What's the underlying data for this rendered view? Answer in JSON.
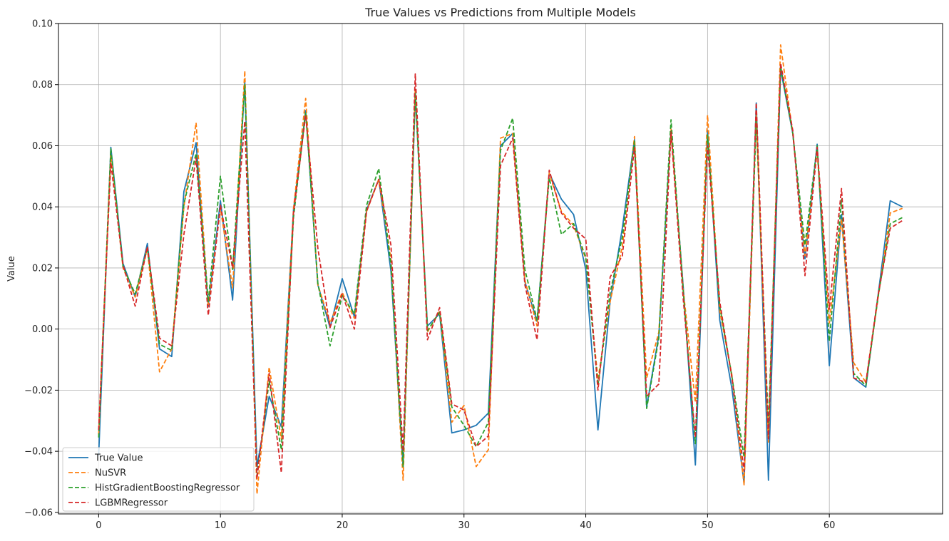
{
  "chart_data": {
    "type": "line",
    "title": "True Values vs Predictions from Multiple Models",
    "xlabel": "",
    "ylabel": "Value",
    "xlim": [
      -3.3,
      69.3
    ],
    "ylim": [
      -0.0605,
      0.1
    ],
    "x_ticks": [
      0,
      10,
      20,
      30,
      40,
      50,
      60
    ],
    "x_tick_labels": [
      "0",
      "10",
      "20",
      "30",
      "40",
      "50",
      "60"
    ],
    "y_ticks": [
      -0.06,
      -0.04,
      -0.02,
      0.0,
      0.02,
      0.04,
      0.06,
      0.08,
      0.1
    ],
    "y_tick_labels": [
      "−0.06",
      "−0.04",
      "−0.02",
      "0.00",
      "0.02",
      "0.04",
      "0.06",
      "0.08",
      "0.10"
    ],
    "grid": true,
    "legend_position": "lower-left",
    "series": [
      {
        "name": "True Value",
        "color": "#1f77b4",
        "dash": "solid",
        "values": [
          -0.0415,
          0.0595,
          0.0215,
          0.0105,
          0.028,
          -0.0065,
          -0.009,
          0.045,
          0.061,
          0.0075,
          0.042,
          0.0095,
          0.081,
          -0.045,
          -0.022,
          -0.032,
          0.039,
          0.0715,
          0.0145,
          0.0005,
          0.0165,
          0.004,
          0.039,
          0.049,
          0.019,
          -0.045,
          0.0765,
          0.001,
          0.005,
          -0.034,
          -0.033,
          -0.0315,
          -0.0275,
          0.06,
          0.064,
          0.0155,
          0.0025,
          0.051,
          0.0425,
          0.0375,
          0.0195,
          -0.033,
          0.009,
          0.033,
          0.062,
          -0.0255,
          -0.002,
          0.065,
          0.014,
          -0.0445,
          0.065,
          0.003,
          -0.0195,
          -0.0505,
          0.074,
          -0.0495,
          0.085,
          0.064,
          0.023,
          0.0605,
          -0.012,
          0.0375,
          -0.016,
          -0.019,
          0.011,
          0.042,
          0.04
        ]
      },
      {
        "name": "NuSVR",
        "color": "#ff7f0e",
        "dash": "dashed",
        "values": [
          -0.0345,
          0.057,
          0.02,
          0.0105,
          0.0265,
          -0.014,
          -0.0065,
          0.04,
          0.0675,
          0.008,
          0.0395,
          0.0135,
          0.0845,
          -0.054,
          -0.0125,
          -0.036,
          0.0395,
          0.0755,
          0.0145,
          0.002,
          0.012,
          0.0035,
          0.0385,
          0.049,
          0.023,
          -0.0495,
          0.079,
          -0.001,
          0.006,
          -0.0305,
          -0.025,
          -0.045,
          -0.0395,
          0.0625,
          0.064,
          0.016,
          0.001,
          0.051,
          0.0385,
          0.034,
          0.023,
          -0.0165,
          0.009,
          0.027,
          0.063,
          -0.016,
          -0.001,
          0.0655,
          0.013,
          -0.024,
          0.07,
          0.006,
          -0.015,
          -0.051,
          0.07,
          -0.037,
          0.093,
          0.064,
          0.024,
          0.058,
          0.002,
          0.036,
          -0.011,
          -0.0175,
          0.01,
          0.038,
          0.0395
        ]
      },
      {
        "name": "HistGradientBoostingRegressor",
        "color": "#2ca02c",
        "dash": "dashed",
        "values": [
          -0.0355,
          0.059,
          0.0205,
          0.0115,
          0.0265,
          -0.005,
          -0.007,
          0.041,
          0.0575,
          0.009,
          0.05,
          0.0195,
          0.08,
          -0.048,
          -0.017,
          -0.0395,
          0.0365,
          0.071,
          0.015,
          -0.0055,
          0.011,
          0.005,
          0.0405,
          0.0525,
          0.021,
          -0.045,
          0.0775,
          -0.0005,
          0.0055,
          -0.0255,
          -0.0315,
          -0.0385,
          -0.0305,
          0.0585,
          0.069,
          0.0195,
          0.003,
          0.0495,
          0.031,
          0.0345,
          0.0235,
          -0.0185,
          0.012,
          0.03,
          0.0615,
          -0.026,
          -0.003,
          0.0685,
          0.0125,
          -0.0375,
          0.0635,
          0.0075,
          -0.0155,
          -0.042,
          0.0685,
          -0.032,
          0.086,
          0.064,
          0.0275,
          0.06,
          -0.004,
          0.0425,
          -0.0145,
          -0.0185,
          0.0105,
          0.0345,
          0.0365
        ]
      },
      {
        "name": "LGBMRegressor",
        "color": "#d62728",
        "dash": "dashed",
        "values": [
          -0.033,
          0.0545,
          0.021,
          0.0075,
          0.027,
          -0.003,
          -0.0055,
          0.031,
          0.056,
          0.0045,
          0.0405,
          0.02,
          0.068,
          -0.049,
          -0.0145,
          -0.047,
          0.038,
          0.07,
          0.0265,
          0.0005,
          0.0115,
          0.0,
          0.0385,
          0.049,
          0.0275,
          -0.04,
          0.0835,
          -0.0035,
          0.007,
          -0.0245,
          -0.0265,
          -0.0385,
          -0.035,
          0.0535,
          0.0625,
          0.0145,
          -0.0035,
          0.052,
          0.038,
          0.033,
          0.0295,
          -0.02,
          0.017,
          0.024,
          0.0595,
          -0.022,
          -0.018,
          0.0645,
          0.01,
          -0.0355,
          0.06,
          0.009,
          -0.016,
          -0.0465,
          0.074,
          -0.036,
          0.087,
          0.065,
          0.0175,
          0.0595,
          0.0065,
          0.046,
          -0.016,
          -0.0175,
          0.011,
          0.033,
          0.0355
        ]
      }
    ]
  }
}
